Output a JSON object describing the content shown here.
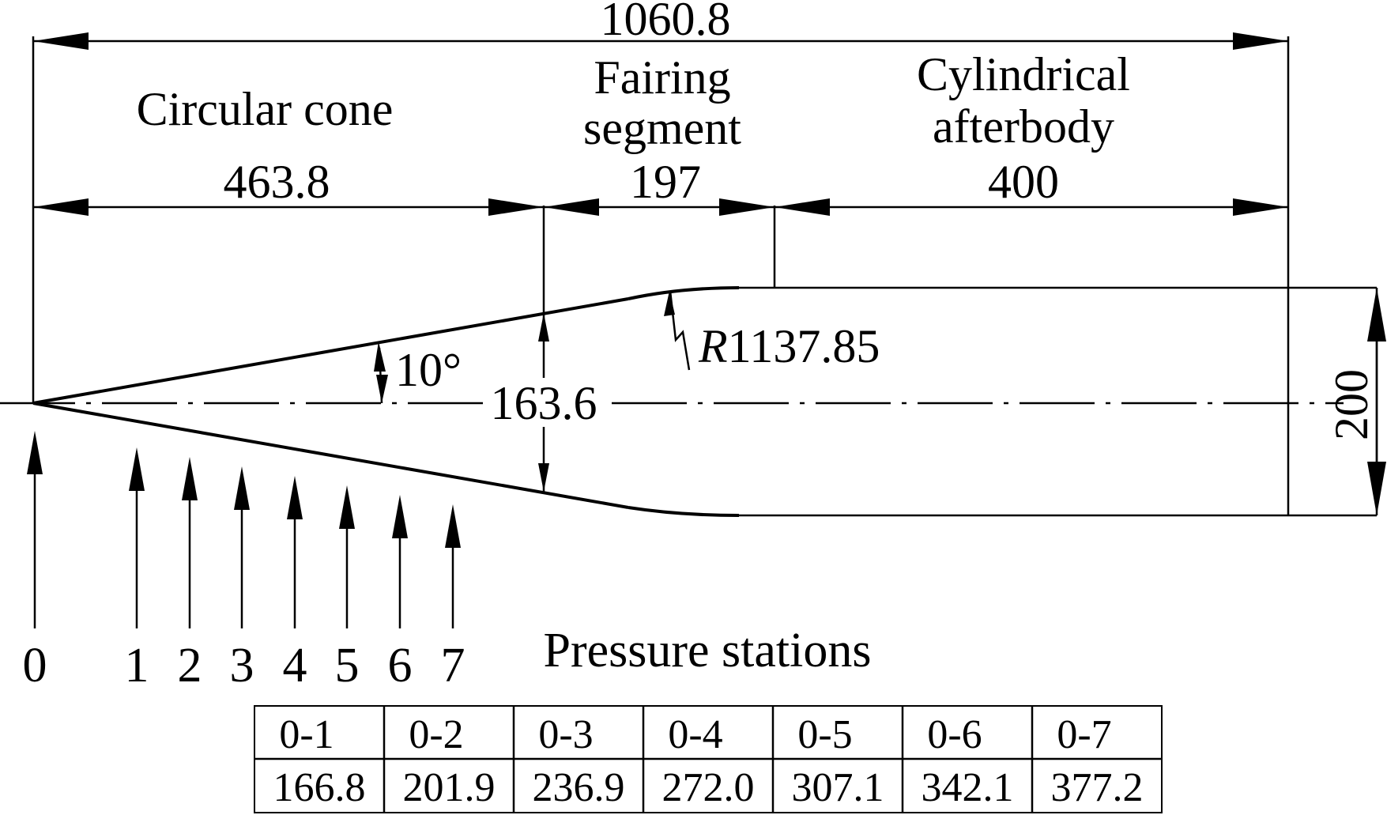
{
  "dimensions": {
    "overall_length": "1060.8",
    "cone_length": "463.8",
    "fairing_length": "197",
    "afterbody_length": "400",
    "cone_half_angle": "10°",
    "cone_base_diameter": "163.6",
    "fairing_radius_prefix": "R",
    "fairing_radius_value": "1137.85",
    "afterbody_diameter": "200"
  },
  "segments": {
    "cone": "Circular cone",
    "fairing_line1": "Fairing",
    "fairing_line2": "segment",
    "afterbody_line1": "Cylindrical",
    "afterbody_line2": "afterbody"
  },
  "stations": {
    "title": "Pressure stations",
    "labels": [
      "0",
      "1",
      "2",
      "3",
      "4",
      "5",
      "6",
      "7"
    ]
  },
  "station_table": {
    "headers": [
      "0-1",
      "0-2",
      "0-3",
      "0-4",
      "0-5",
      "0-6",
      "0-7"
    ],
    "values": [
      "166.8",
      "201.9",
      "236.9",
      "272.0",
      "307.1",
      "342.1",
      "377.2"
    ]
  }
}
